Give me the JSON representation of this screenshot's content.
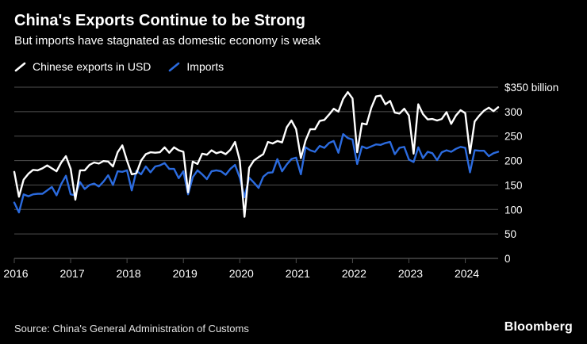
{
  "header": {
    "title": "China's Exports Continue to be Strong",
    "subtitle": "But imports have stagnated as domestic economy is weak"
  },
  "legend": {
    "position": "top-left",
    "items": [
      {
        "label": "Chinese exports in USD",
        "color": "#ffffff"
      },
      {
        "label": "Imports",
        "color": "#2b6bdf"
      }
    ]
  },
  "footer": {
    "source": "Source: China's General Administration of Customs",
    "brand": "Bloomberg"
  },
  "colors": {
    "background": "#000000",
    "grid": "#4f4f4f",
    "zero_line": "#6e6e6e",
    "axis_text": "#ffffff",
    "exports_line": "#ffffff",
    "imports_line": "#2b6bdf"
  },
  "chart_data": {
    "type": "line",
    "title": "China's Exports Continue to be Strong",
    "subtitle": "But imports have stagnated as domestic economy is weak",
    "frequency": "monthly",
    "start_year": 2016,
    "points_per_year": 12,
    "x_tick_labels": [
      "2016",
      "2017",
      "2018",
      "2019",
      "2020",
      "2021",
      "2022",
      "2023",
      "2024"
    ],
    "ylim": [
      0,
      350
    ],
    "yticks": [
      0,
      50,
      100,
      150,
      200,
      250,
      300,
      350
    ],
    "ytick_top_label": "$350 billion",
    "grid": true,
    "legend_position": "top-left",
    "series": [
      {
        "name": "Chinese exports in USD",
        "color": "#ffffff",
        "values": [
          177,
          126,
          161,
          173,
          181,
          180,
          184,
          190,
          184,
          178,
          196,
          209,
          183,
          120,
          180,
          180,
          191,
          196,
          194,
          199,
          198,
          188,
          217,
          231,
          200,
          172,
          174,
          200,
          213,
          217,
          216,
          217,
          227,
          216,
          227,
          221,
          218,
          135,
          198,
          193,
          214,
          212,
          221,
          215,
          218,
          213,
          222,
          238,
          200,
          85,
          185,
          200,
          207,
          213,
          238,
          235,
          240,
          237,
          268,
          282,
          264,
          205,
          241,
          264,
          264,
          281,
          283,
          294,
          306,
          300,
          326,
          340,
          327,
          217,
          276,
          274,
          308,
          331,
          333,
          315,
          322,
          298,
          296,
          306,
          292,
          214,
          315,
          295,
          284,
          285,
          282,
          285,
          299,
          275,
          292,
          303,
          297,
          215,
          280,
          292,
          302,
          308,
          301,
          309
        ]
      },
      {
        "name": "Imports",
        "color": "#2b6bdf",
        "values": [
          114,
          94,
          131,
          127,
          131,
          132,
          132,
          139,
          146,
          129,
          152,
          169,
          131,
          129,
          156,
          142,
          150,
          153,
          147,
          157,
          170,
          150,
          178,
          177,
          180,
          139,
          179,
          172,
          188,
          176,
          188,
          190,
          195,
          183,
          183,
          164,
          178,
          131,
          166,
          180,
          172,
          162,
          178,
          180,
          178,
          171,
          183,
          191,
          165,
          125,
          165,
          155,
          144,
          167,
          175,
          176,
          203,
          178,
          192,
          203,
          206,
          172,
          227,
          221,
          218,
          230,
          226,
          236,
          240,
          216,
          254,
          246,
          243,
          193,
          229,
          225,
          229,
          233,
          232,
          236,
          238,
          213,
          226,
          228,
          202,
          197,
          227,
          205,
          218,
          215,
          201,
          217,
          221,
          218,
          224,
          228,
          226,
          176,
          221,
          220,
          220,
          209,
          215,
          218
        ]
      }
    ]
  }
}
